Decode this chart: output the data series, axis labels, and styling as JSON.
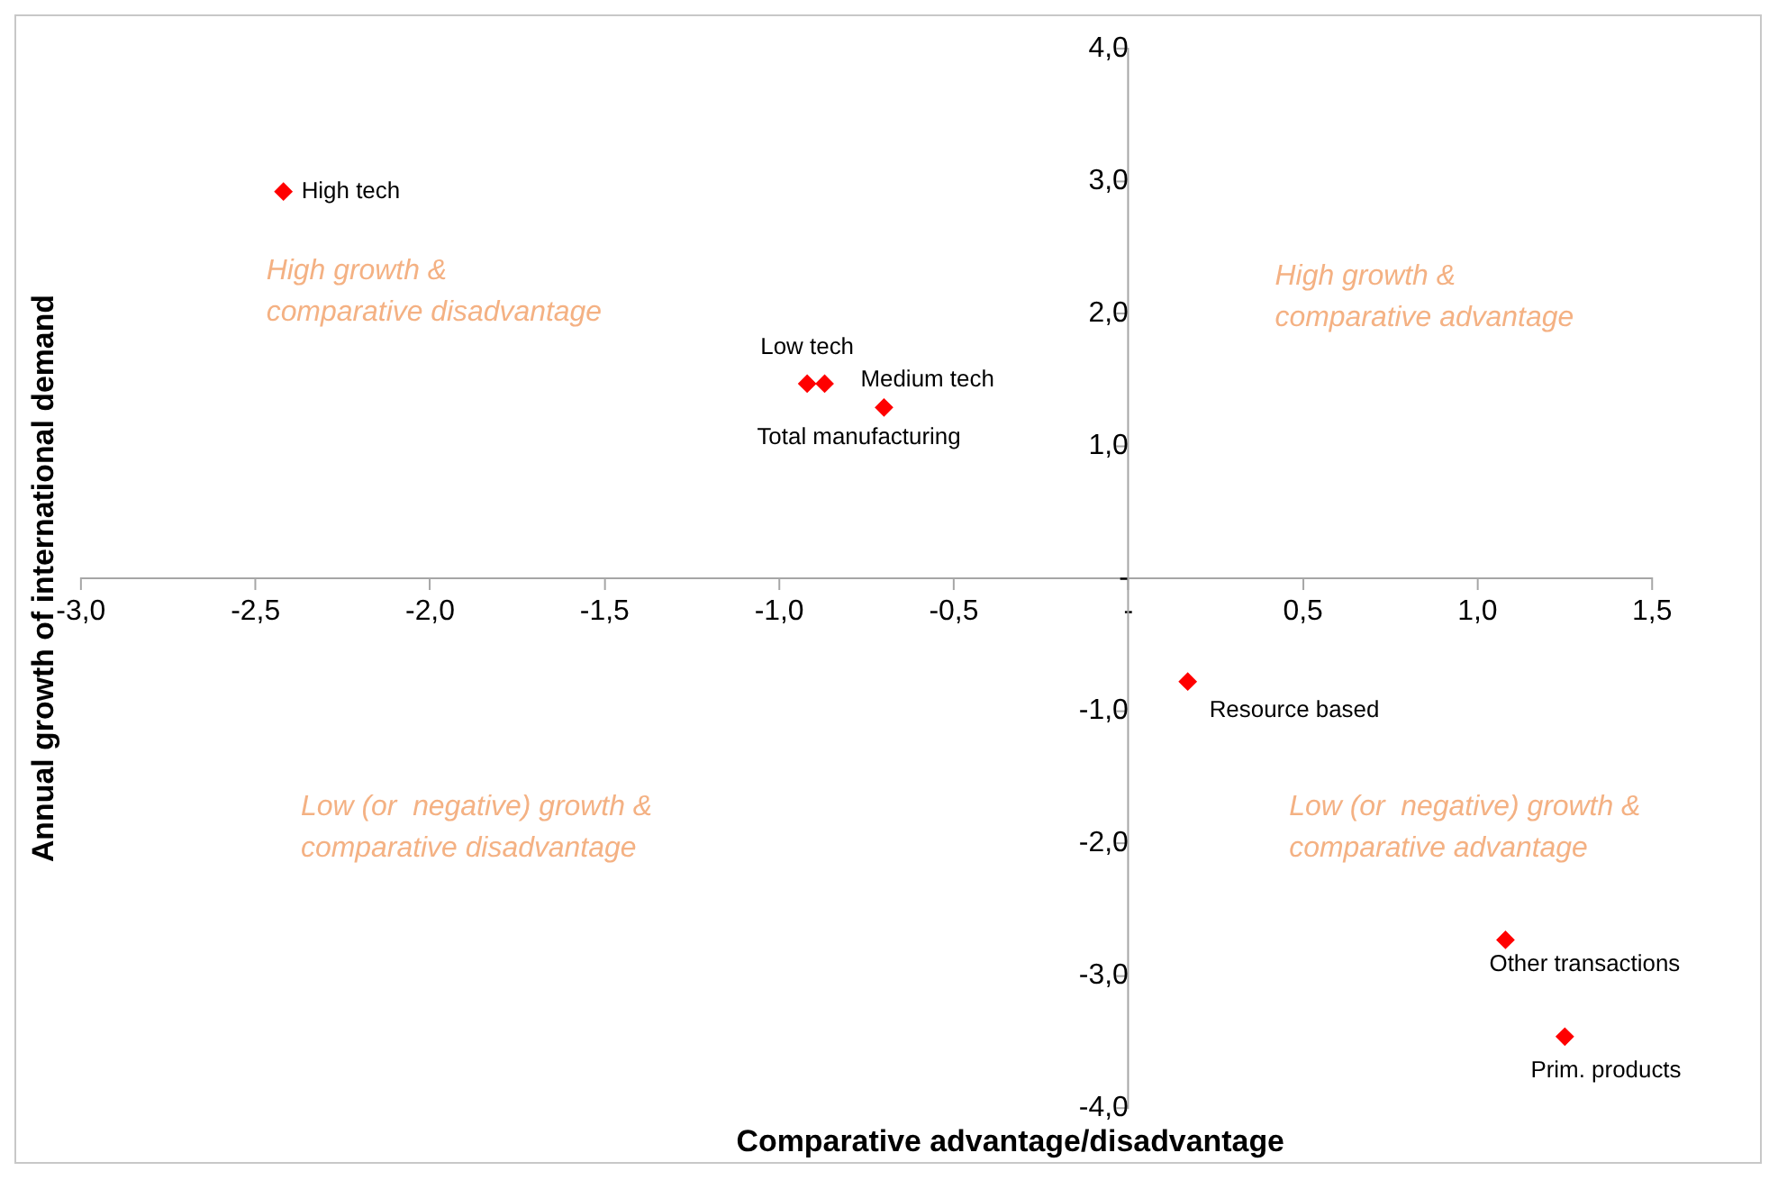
{
  "chart_data": {
    "type": "scatter",
    "xlabel": "Comparative advantage/disadvantage",
    "ylabel": "Annual growth of international demand",
    "series": [
      {
        "color": "#ff0000",
        "x": [
          -2.42,
          -0.92,
          -0.87,
          -0.7,
          0.17,
          1.08,
          1.25
        ],
        "values": [
          2.92,
          1.47,
          1.47,
          1.29,
          -0.78,
          -2.73,
          -3.46
        ]
      }
    ],
    "marker": "diamond",
    "grid": false,
    "legend": false,
    "xlim": [
      -3,
      1.5
    ],
    "xticks": [
      {
        "value": -3,
        "label": "-3,0"
      },
      {
        "value": -2.5,
        "label": "-2,5"
      },
      {
        "value": -2,
        "label": "-2,0"
      },
      {
        "value": -1.5,
        "label": "-1,5"
      },
      {
        "value": -1,
        "label": "-1,0"
      },
      {
        "value": -0.5,
        "label": "-0,5"
      },
      {
        "value": 0,
        "label": "-"
      },
      {
        "value": 0.5,
        "label": "0,5"
      },
      {
        "value": 1,
        "label": "1,0"
      },
      {
        "value": 1.5,
        "label": "1,5"
      }
    ],
    "ylim": [
      -4,
      4
    ],
    "yticks": [
      {
        "value": -4,
        "label": "-4,0"
      },
      {
        "value": -3,
        "label": "-3,0"
      },
      {
        "value": -2,
        "label": "-2,0"
      },
      {
        "value": -1,
        "label": "-1,0"
      },
      {
        "value": 0,
        "label": "-"
      },
      {
        "value": 1,
        "label": "1,0"
      },
      {
        "value": 2,
        "label": "2,0"
      },
      {
        "value": 3,
        "label": "3,0"
      },
      {
        "value": 4,
        "label": "4,0"
      }
    ],
    "annotations": [
      {
        "text": "High tech",
        "x": -2.42,
        "y": 2.92
      },
      {
        "text": "Low tech",
        "x": -0.92,
        "y": 1.47
      },
      {
        "text": "Medium tech",
        "x": -0.87,
        "y": 1.47
      },
      {
        "text": "Total manufacturing",
        "x": -0.7,
        "y": 1.29
      },
      {
        "text": "Resource based",
        "x": 0.17,
        "y": -0.78
      },
      {
        "text": "Other transactions",
        "x": 1.08,
        "y": -2.73
      },
      {
        "text": "Prim. products",
        "x": 1.25,
        "y": -3.46
      },
      "High growth &\ncomparative disadvantage",
      "High growth &\ncomparative advantage",
      "Low (or  negative) growth &\ncomparative disadvantage",
      "Low (or  negative) growth &\ncomparative advantage"
    ]
  }
}
